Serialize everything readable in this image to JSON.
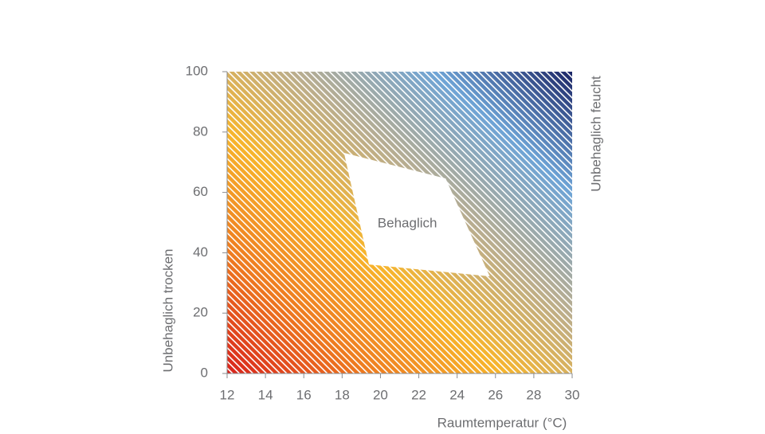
{
  "chart_data": {
    "type": "polygon",
    "xlabel": "Raumtemperatur (°C)",
    "ylabel": "Unbehaglich trocken",
    "y2label": "Unbehaglich feucht",
    "xlim": [
      12,
      30
    ],
    "xticks": [
      12,
      14,
      16,
      18,
      20,
      22,
      24,
      26,
      28,
      30
    ],
    "ylim": [
      0,
      100
    ],
    "yticks": [
      0,
      20,
      40,
      60,
      80,
      100
    ],
    "background_gradient": [
      "#d8231c",
      "#ee7a1f",
      "#f7b52c",
      "#b9ad8f",
      "#6ea4d6",
      "#1b2566"
    ],
    "hatch_color": "#ffffff",
    "region": {
      "label": "Behaglich",
      "color": "#ffffff",
      "x": [
        18.1,
        23.4,
        25.7,
        19.4
      ],
      "y": [
        73.1,
        64.6,
        32.2,
        36.1
      ]
    }
  }
}
